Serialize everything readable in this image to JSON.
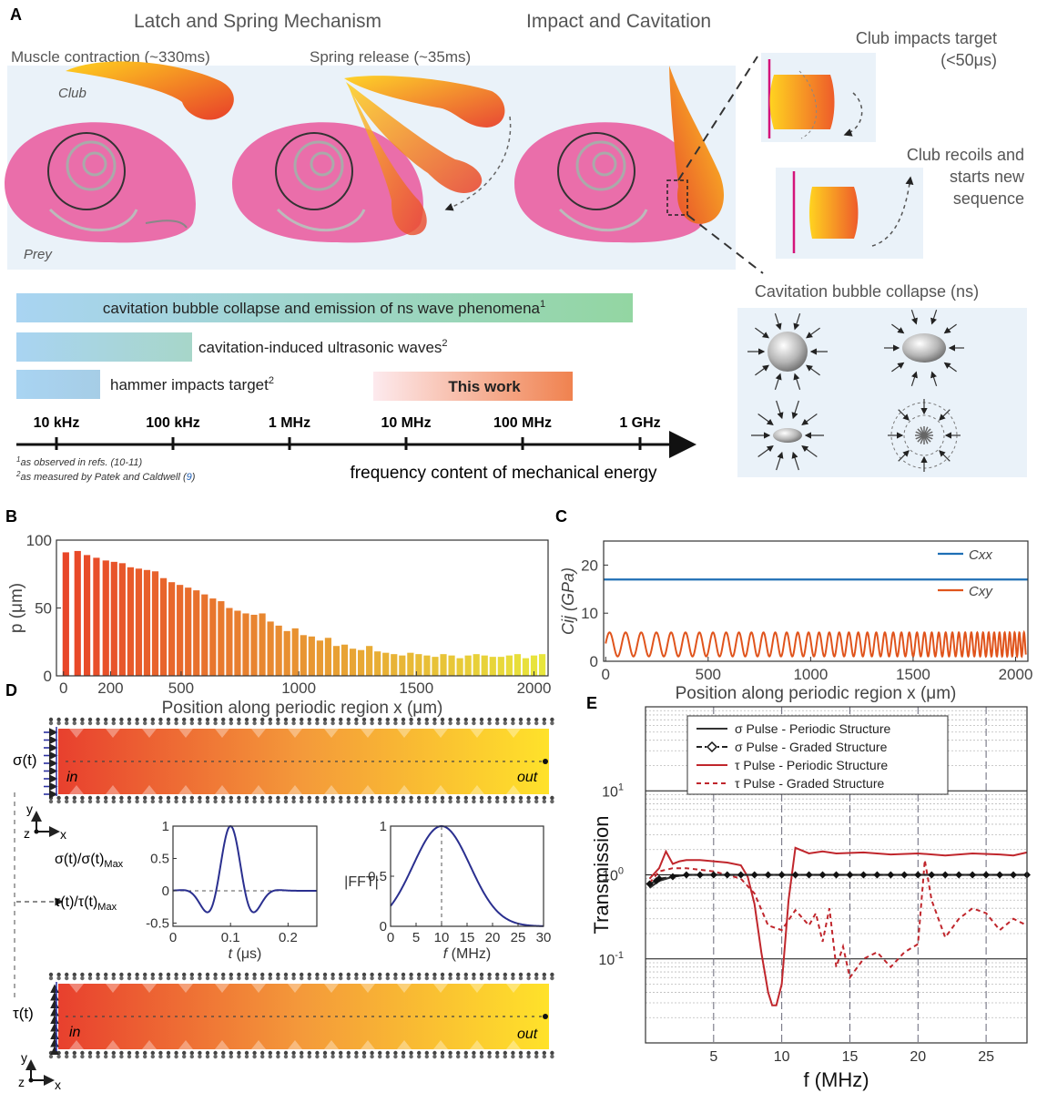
{
  "panels": {
    "a": {
      "label": "A",
      "title_latch": "Latch and Spring Mechanism",
      "title_impact": "Impact and Cavitation",
      "muscle": "Muscle contraction (~330ms)",
      "spring": "Spring release (~35ms)",
      "club": "Club",
      "prey": "Prey",
      "club_impacts_1": "Club impacts target",
      "club_impacts_2": "(<50μs)",
      "recoil_1": "Club recoils and",
      "recoil_2": "starts new",
      "recoil_3": "sequence",
      "cavitation_title": "Cavitation bubble collapse (ns)",
      "bars": [
        {
          "text": "cavitation bubble collapse and emission of ns wave phenomena",
          "sup": "1"
        },
        {
          "text": "cavitation-induced ultrasonic waves",
          "sup": "2"
        },
        {
          "text": "hammer impacts target",
          "sup": "2"
        },
        {
          "text": "This work",
          "sup": ""
        }
      ],
      "freq_ticks": [
        "10 kHz",
        "100 kHz",
        "1 MHz",
        "10 MHz",
        "100 MHz",
        "1 GHz"
      ],
      "footnote_1": "as observed in refs. (10-11)",
      "footnote_2a": "as measured by Patek and Caldwell (",
      "footnote_2b": "9",
      "footnote_2c": ")",
      "axis_label": "frequency content of mechanical energy"
    },
    "b": {
      "label": "B"
    },
    "c": {
      "label": "C"
    },
    "d": {
      "label": "D",
      "sigma": "σ(t)",
      "tau": "τ(t)",
      "in": "in",
      "out": "out",
      "ylab_sigma": "σ(t)/σ(t)",
      "ylab_tau": "τ(t)/τ(t)",
      "sub_max": "Max",
      "fft_ylabel": "|FFT|",
      "y": "y",
      "z": "z",
      "x": "x"
    },
    "e": {
      "label": "E"
    }
  },
  "chart_data": [
    {
      "id": "B",
      "type": "bar",
      "xlabel": "Position along periodic region x (μm)",
      "ylabel": "p (μm)",
      "xlim": [
        -30,
        2060
      ],
      "ylim": [
        0,
        100
      ],
      "xticks": [
        0,
        200,
        500,
        1000,
        1500,
        2000
      ],
      "yticks": [
        0,
        50,
        100
      ],
      "x": [
        10,
        60,
        100,
        140,
        180,
        215,
        250,
        285,
        320,
        355,
        390,
        425,
        460,
        495,
        530,
        565,
        600,
        635,
        670,
        705,
        740,
        775,
        810,
        845,
        880,
        915,
        950,
        985,
        1020,
        1055,
        1090,
        1125,
        1160,
        1195,
        1230,
        1265,
        1300,
        1335,
        1370,
        1405,
        1440,
        1475,
        1510,
        1545,
        1580,
        1615,
        1650,
        1685,
        1720,
        1755,
        1790,
        1825,
        1860,
        1895,
        1930,
        1965,
        2000,
        2035
      ],
      "values": [
        91,
        92,
        89,
        87,
        85,
        84,
        83,
        80,
        79,
        78,
        77,
        72,
        69,
        67,
        65,
        63,
        60,
        57,
        55,
        50,
        48,
        46,
        45,
        46,
        40,
        37,
        33,
        35,
        30,
        29,
        26,
        28,
        22,
        23,
        20,
        19,
        22,
        18,
        17,
        16,
        15,
        17,
        16,
        15,
        14,
        16,
        15,
        13,
        15,
        16,
        15,
        14,
        14,
        15,
        16,
        13,
        15,
        16
      ]
    },
    {
      "id": "C",
      "type": "line",
      "xlabel": "Position along periodic region x (μm)",
      "ylabel": "Cij (GPa)",
      "xlim": [
        -10,
        2060
      ],
      "ylim": [
        0,
        25
      ],
      "xticks": [
        0,
        500,
        1000,
        1500,
        2000
      ],
      "yticks": [
        0,
        10,
        20
      ],
      "series": [
        {
          "name": "Cxx",
          "constant": 17,
          "color": "#1f6fb5"
        },
        {
          "name": "Cxy",
          "oscillation": {
            "center": 3.5,
            "amplitude": 2.5,
            "period_start": 80,
            "period_end": 22
          },
          "color": "#e0541c"
        }
      ],
      "legend": "right"
    },
    {
      "id": "D-time",
      "type": "line",
      "xlabel": "t (μs)",
      "ylabel": "σ(t)/σ(t)Max",
      "xlim": [
        0,
        0.25
      ],
      "ylim": [
        -0.55,
        1
      ],
      "xticks": [
        0,
        0.1,
        0.2
      ],
      "yticks": [
        -0.5,
        0,
        0.5,
        1
      ],
      "series": [
        {
          "center": 0.1,
          "frequency_MHz": 10,
          "sigma": 0.03,
          "color": "#2a2f8f"
        }
      ]
    },
    {
      "id": "D-freq",
      "type": "line",
      "xlabel": "f (MHz)",
      "ylabel": "|FFT|",
      "xlim": [
        0,
        30
      ],
      "ylim": [
        0,
        1
      ],
      "xticks": [
        0,
        5,
        10,
        15,
        20,
        25,
        30
      ],
      "yticks": [
        0,
        0.5,
        1
      ],
      "series": [
        {
          "center": 10,
          "width": 5.6,
          "color": "#2a2f8f"
        }
      ]
    },
    {
      "id": "E",
      "type": "line",
      "xlabel": "f (MHz)",
      "ylabel": "Transmission",
      "log_y": true,
      "xlim": [
        0,
        28
      ],
      "ylim": [
        0.01,
        100
      ],
      "xticks": [
        5,
        10,
        15,
        20,
        25
      ],
      "yticks": [
        "10^-1",
        "10^0",
        "10^1"
      ],
      "series": [
        {
          "name": "σ Pulse - Periodic Structure",
          "color": "#333333",
          "style": "solid",
          "x": [
            0.3,
            1,
            2,
            3,
            5,
            8,
            10,
            15,
            20,
            25,
            28
          ],
          "y": [
            0.7,
            0.85,
            0.95,
            1,
            1,
            1,
            1,
            1,
            1,
            1,
            1
          ]
        },
        {
          "name": "σ Pulse - Graded Structure",
          "color": "#222222",
          "style": "dashdot-diamond",
          "x": [
            0.3,
            0.8,
            1,
            2,
            3,
            4,
            5,
            6,
            7,
            8,
            9,
            10,
            11,
            12,
            13,
            14,
            15,
            16,
            17,
            18,
            19,
            20,
            21,
            22,
            23,
            24,
            25,
            26,
            27,
            28
          ],
          "y": [
            0.78,
            0.85,
            0.9,
            0.95,
            1,
            1,
            1,
            1,
            1,
            1,
            1,
            1,
            1,
            1,
            1,
            1,
            1,
            1,
            1,
            1,
            1,
            1,
            1,
            1,
            1,
            1,
            1,
            1,
            1,
            1
          ]
        },
        {
          "name": "τ Pulse - Periodic Structure",
          "color": "#c0262c",
          "style": "solid",
          "x": [
            0.3,
            1,
            1.5,
            2,
            2.5,
            3,
            4,
            5,
            6,
            7,
            7.5,
            8,
            8.5,
            9,
            9.3,
            9.6,
            10,
            10.5,
            11,
            12,
            13,
            14,
            16,
            18,
            20,
            22,
            24,
            26,
            27,
            28
          ],
          "y": [
            0.9,
            1.2,
            1.9,
            1.35,
            1.45,
            1.5,
            1.5,
            1.45,
            1.4,
            1.3,
            0.95,
            0.45,
            0.12,
            0.04,
            0.028,
            0.028,
            0.05,
            0.5,
            2.1,
            1.8,
            1.9,
            1.8,
            1.85,
            1.75,
            1.8,
            1.7,
            1.8,
            1.75,
            1.7,
            1.85
          ]
        },
        {
          "name": "τ Pulse - Graded Structure",
          "color": "#c0262c",
          "style": "dashed",
          "x": [
            0.3,
            1,
            2,
            3,
            4,
            5,
            6,
            7,
            8,
            9,
            10,
            11,
            12,
            12.5,
            13,
            13.5,
            14,
            14.5,
            15,
            16,
            17,
            18,
            19,
            20,
            20.5,
            21,
            22,
            23,
            24,
            25,
            26,
            27,
            28
          ],
          "y": [
            0.8,
            1.1,
            1.2,
            1.2,
            1.15,
            1.1,
            1.0,
            0.9,
            0.6,
            0.25,
            0.22,
            0.38,
            0.25,
            0.35,
            0.16,
            0.4,
            0.08,
            0.14,
            0.06,
            0.1,
            0.12,
            0.08,
            0.12,
            0.15,
            1.5,
            0.5,
            0.18,
            0.3,
            0.4,
            0.35,
            0.22,
            0.3,
            0.25
          ]
        }
      ],
      "legend": "top"
    }
  ]
}
